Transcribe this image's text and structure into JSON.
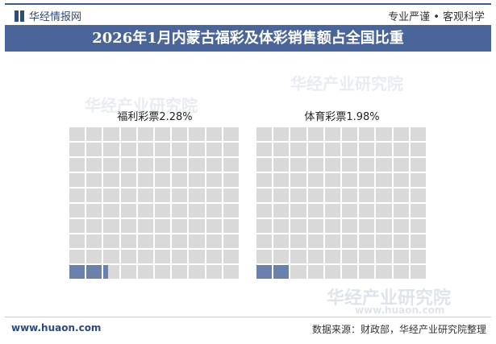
{
  "header": {
    "logo_text": "华经情报网",
    "slogan": "专业严谨 • 客观科学"
  },
  "title": "2026年1月内蒙古福彩及体彩销售额占全国比重",
  "watermark": "华经产业研究院",
  "watermark_url": "www.huaon.com",
  "footer": {
    "site": "www.huaon.com",
    "source": "数据来源：财政部，华经产业研究院整理"
  },
  "colors": {
    "filled": "#6b80ab",
    "empty": "#d9d9d9",
    "title_bg": "#4a6599"
  },
  "chart_data": [
    {
      "type": "waffle",
      "grid": [
        10,
        10
      ],
      "label": "福利彩票2.28%",
      "category": "福利彩票",
      "value": 2.28,
      "unit": "%"
    },
    {
      "type": "waffle",
      "grid": [
        10,
        10
      ],
      "label": "体育彩票1.98%",
      "category": "体育彩票",
      "value": 1.98,
      "unit": "%"
    }
  ]
}
